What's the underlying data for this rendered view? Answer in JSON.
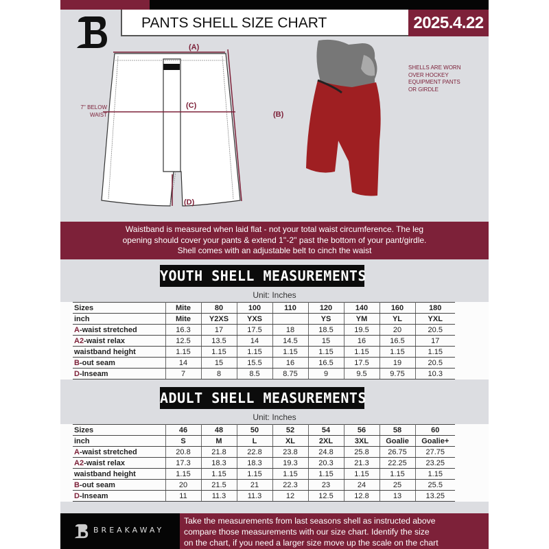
{
  "header": {
    "title": "PANTS SHELL SIZE CHART",
    "date": "2025.4.22"
  },
  "diagram": {
    "label_a": "(A)",
    "label_b": "(B)",
    "label_c": "(C)",
    "label_d": "(D)",
    "below_waist": [
      "7'' BELOW",
      "WAIST"
    ]
  },
  "photo_note": [
    "SHELLS ARE WORN",
    "OVER HOCKEY",
    "EQUIPMENT PANTS",
    "OR GIRDLE"
  ],
  "banner": [
    "Waistband is measured when laid flat - not your total waist circumference. The leg",
    "opening should cover your pants & extend 1''-2'' past the bottom of your pant/girdle.",
    "Shell comes with an adjustable belt to cinch the waist"
  ],
  "youth": {
    "title": "YOUTH SHELL MEASUREMENTS",
    "unit": "Unit: Inches",
    "rows": [
      {
        "pre": "",
        "label": "Sizes",
        "values": [
          "Mite",
          "80",
          "100",
          "110",
          "120",
          "140",
          "160",
          "180"
        ]
      },
      {
        "pre": "",
        "label": "inch",
        "values": [
          "Mite",
          "Y2XS",
          "YXS",
          "",
          "YS",
          "YM",
          "YL",
          "YXL"
        ]
      },
      {
        "pre": "A",
        "label": "-waist stretched",
        "values": [
          "16.3",
          "17",
          "17.5",
          "18",
          "18.5",
          "19.5",
          "20",
          "20.5"
        ]
      },
      {
        "pre": "A2",
        "label": "-waist relax",
        "values": [
          "12.5",
          "13.5",
          "14",
          "14.5",
          "15",
          "16",
          "16.5",
          "17"
        ]
      },
      {
        "pre": "",
        "label": "waistband height",
        "values": [
          "1.15",
          "1.15",
          "1.15",
          "1.15",
          "1.15",
          "1.15",
          "1.15",
          "1.15"
        ]
      },
      {
        "pre": "B",
        "label": "-out seam",
        "values": [
          "14",
          "15",
          "15.5",
          "16",
          "16.5",
          "17.5",
          "19",
          "20.5"
        ]
      },
      {
        "pre": "D",
        "label": "-Inseam",
        "values": [
          "7",
          "8",
          "8.5",
          "8.75",
          "9",
          "9.5",
          "9.75",
          "10.3"
        ]
      }
    ]
  },
  "adult": {
    "title": "ADULT SHELL MEASUREMENTS",
    "unit": "Unit: Inches",
    "rows": [
      {
        "pre": "",
        "label": "Sizes",
        "values": [
          "46",
          "48",
          "50",
          "52",
          "54",
          "56",
          "58",
          "60"
        ]
      },
      {
        "pre": "",
        "label": "inch",
        "values": [
          "S",
          "M",
          "L",
          "XL",
          "2XL",
          "3XL",
          "Goalie",
          "Goalie+"
        ]
      },
      {
        "pre": "A",
        "label": "-waist stretched",
        "values": [
          "20.8",
          "21.8",
          "22.8",
          "23.8",
          "24.8",
          "25.8",
          "26.75",
          "27.75"
        ]
      },
      {
        "pre": "A2",
        "label": "-waist relax",
        "values": [
          "17.3",
          "18.3",
          "18.3",
          "19.3",
          "20.3",
          "21.3",
          "22.25",
          "23.25"
        ]
      },
      {
        "pre": "",
        "label": "waistband height",
        "values": [
          "1.15",
          "1.15",
          "1.15",
          "1.15",
          "1.15",
          "1.15",
          "1.15",
          "1.15"
        ]
      },
      {
        "pre": "B",
        "label": "-out seam",
        "values": [
          "20",
          "21.5",
          "21",
          "22.3",
          "23",
          "24",
          "25",
          "25.5"
        ]
      },
      {
        "pre": "D",
        "label": "-Inseam",
        "values": [
          "11",
          "11.3",
          "11.3",
          "12",
          "12.5",
          "12.8",
          "13",
          "13.25"
        ]
      }
    ]
  },
  "footer": {
    "brand": "BREAKAWAY",
    "text": [
      "Take the measurements from last seasons shell as instructed above",
      "compare those measurements  with our size chart. Identify the size",
      "on the chart, if you need a larger size move up the scale on the chart"
    ]
  },
  "colors": {
    "maroon": "#7d2139",
    "black": "#050505",
    "background": "#dcdde1"
  }
}
